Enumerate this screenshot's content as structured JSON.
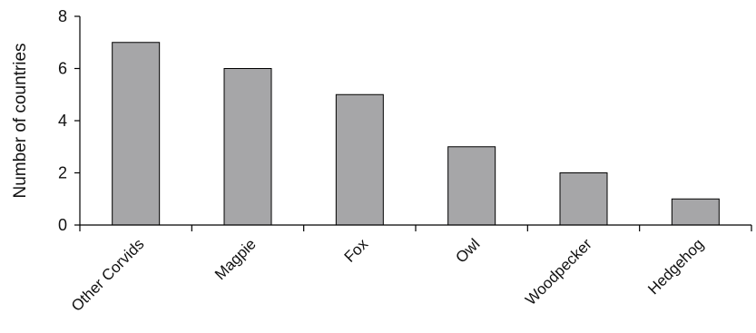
{
  "chart_data": {
    "type": "bar",
    "title": "",
    "xlabel": "",
    "ylabel": "Number of countries",
    "categories": [
      "Other Corvids",
      "Magpie",
      "Fox",
      "Owl",
      "Woodpecker",
      "Hedgehog"
    ],
    "values": [
      7,
      6,
      5,
      3,
      2,
      1
    ],
    "ylim": [
      0,
      8
    ],
    "yticks": [
      0,
      2,
      4,
      6,
      8
    ],
    "grid": false,
    "legend": "none",
    "bar_color": "#a6a6a8",
    "bar_edge_color": "#000000"
  }
}
